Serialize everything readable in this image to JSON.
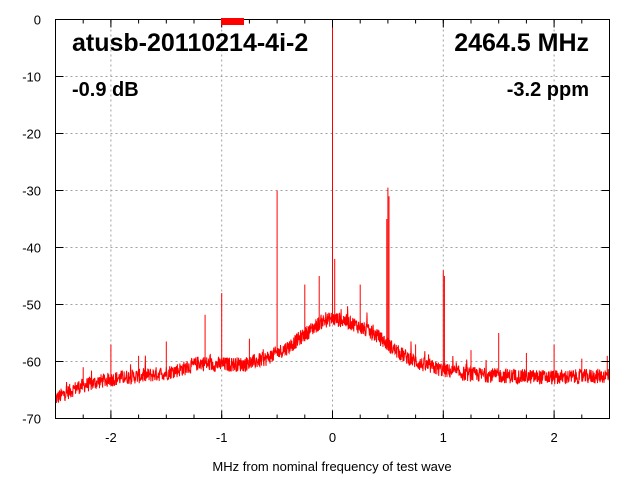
{
  "chart_data": {
    "type": "line",
    "title": "",
    "xlabel": "MHz from nominal frequency of test wave",
    "ylabel": "",
    "xlim": [
      -2.5,
      2.5
    ],
    "ylim": [
      -70,
      0
    ],
    "x_ticks": [
      -2,
      -1,
      0,
      1,
      2
    ],
    "y_ticks": [
      0,
      -10,
      -20,
      -30,
      -40,
      -50,
      -60,
      -70
    ],
    "grid": true,
    "line_color": "#ff0000",
    "annotations": {
      "device": "atusb-20110214-4i-2",
      "frequency": "2464.5 MHz",
      "level": "-0.9 dB",
      "offset": "-3.2 ppm"
    },
    "series": [
      {
        "baseline": [
          [
            -2.5,
            -66.5
          ],
          [
            -2.3,
            -64.5
          ],
          [
            -2.1,
            -63.5
          ],
          [
            -1.9,
            -62.8
          ],
          [
            -1.7,
            -62.5
          ],
          [
            -1.5,
            -62.0
          ],
          [
            -1.3,
            -61.0
          ],
          [
            -1.2,
            -60.2
          ],
          [
            -1.1,
            -60.5
          ],
          [
            -1.0,
            -60.5
          ],
          [
            -0.8,
            -60.5
          ],
          [
            -0.6,
            -59.5
          ],
          [
            -0.4,
            -57.5
          ],
          [
            -0.2,
            -54.5
          ],
          [
            -0.1,
            -53.0
          ],
          [
            0.0,
            -52.5
          ],
          [
            0.1,
            -52.8
          ],
          [
            0.2,
            -53.5
          ],
          [
            0.4,
            -55.5
          ],
          [
            0.6,
            -58.5
          ],
          [
            0.8,
            -60.5
          ],
          [
            1.0,
            -61.5
          ],
          [
            1.2,
            -62.2
          ],
          [
            1.5,
            -62.5
          ],
          [
            2.0,
            -62.8
          ],
          [
            2.5,
            -62.5
          ]
        ],
        "spurs": [
          [
            0.0,
            0.0
          ],
          [
            -0.5,
            -30.0
          ],
          [
            0.5,
            -29.5
          ],
          [
            0.49,
            -35.0
          ],
          [
            0.51,
            -31.0
          ],
          [
            -0.25,
            -46.5
          ],
          [
            0.25,
            -46.5
          ],
          [
            -1.0,
            -48.0
          ],
          [
            1.0,
            -44.0
          ],
          [
            1.01,
            -45.0
          ],
          [
            -1.5,
            -56.5
          ],
          [
            -2.0,
            -57.0
          ],
          [
            1.5,
            -55.0
          ],
          [
            2.0,
            -57.0
          ],
          [
            -1.15,
            -51.8
          ],
          [
            -0.75,
            -56.0
          ],
          [
            0.75,
            -57.0
          ],
          [
            1.25,
            -58.0
          ],
          [
            -1.75,
            -59.0
          ],
          [
            1.75,
            -58.5
          ],
          [
            2.25,
            -59.5
          ],
          [
            -2.25,
            -61.0
          ],
          [
            -0.12,
            -45.0
          ],
          [
            0.02,
            -42.0
          ],
          [
            0.1,
            -52.0
          ],
          [
            2.48,
            -59.0
          ]
        ]
      }
    ]
  }
}
